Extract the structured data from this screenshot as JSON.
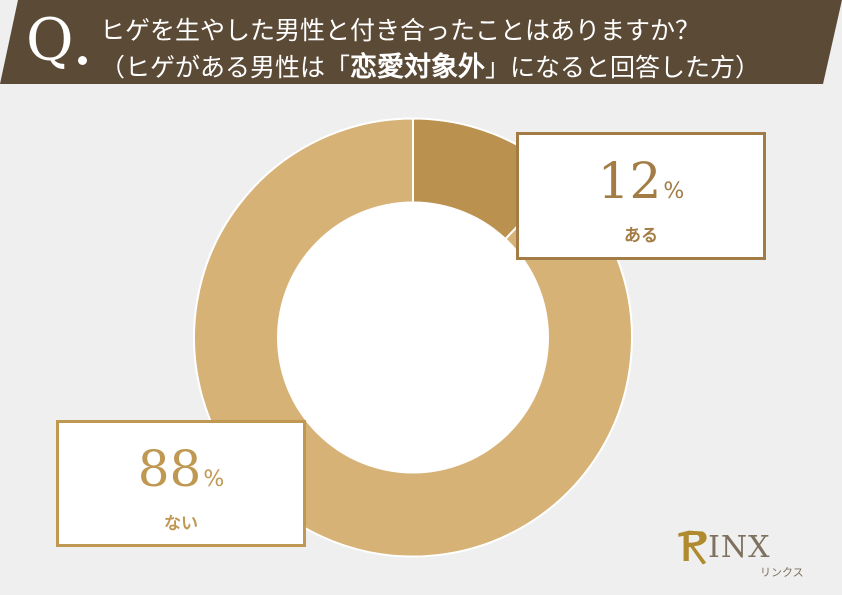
{
  "header": {
    "q_mark": "Q",
    "line1": "ヒゲを生やした男性と付き合ったことはありますか？",
    "line2_pre": "（ヒゲがある男性は「",
    "line2_em": "恋愛対象外",
    "line2_post": "」になると回答した方）",
    "background_color": "#5a4a36"
  },
  "callouts": {
    "yes": {
      "value": "12",
      "unit": "%",
      "label": "ある"
    },
    "no": {
      "value": "88",
      "unit": "%",
      "label": "ない"
    }
  },
  "logo": {
    "text": "RINX",
    "subtext": "リンクス",
    "initial": "R"
  },
  "colors": {
    "background": "#efefef",
    "slice_yes": "#bb9150",
    "slice_no": "#d7b277",
    "hole": "#ffffff"
  },
  "chart_data": {
    "type": "pie",
    "subtype": "donut",
    "title": "ヒゲを生やした男性と付き合ったことはありますか？（ヒゲがある男性は「恋愛対象外」になると回答した方）",
    "categories": [
      "ある",
      "ない"
    ],
    "values": [
      12,
      88
    ],
    "unit": "%",
    "colors": [
      "#bb9150",
      "#d7b277"
    ],
    "start_angle": "12 o'clock, clockwise",
    "legend": "callout boxes"
  }
}
